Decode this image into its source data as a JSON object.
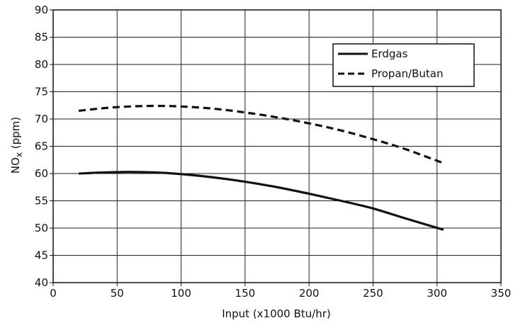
{
  "chart_data": {
    "type": "line",
    "title": "",
    "xlabel": "Input (x1000 Btu/hr)",
    "ylabel": "NOx (ppm)",
    "ylabel_main": "NO",
    "ylabel_sub": "x",
    "ylabel_rest": " (ppm)",
    "xlim": [
      0,
      350
    ],
    "ylim": [
      40,
      90
    ],
    "xticks": [
      0,
      50,
      100,
      150,
      200,
      250,
      300,
      350
    ],
    "yticks": [
      40,
      45,
      50,
      55,
      60,
      65,
      70,
      75,
      80,
      85,
      90
    ],
    "grid": true,
    "legend_position": "top-right",
    "series": [
      {
        "name": "Erdgas",
        "style": "solid",
        "color": "#111111",
        "x": [
          20,
          40,
          60,
          80,
          100,
          125,
          150,
          175,
          200,
          225,
          250,
          275,
          305
        ],
        "y": [
          60.0,
          60.2,
          60.3,
          60.2,
          59.9,
          59.3,
          58.5,
          57.5,
          56.3,
          55.0,
          53.6,
          51.8,
          49.7
        ]
      },
      {
        "name": "Propan/Butan",
        "style": "dashed",
        "color": "#111111",
        "x": [
          20,
          40,
          60,
          80,
          100,
          125,
          150,
          175,
          200,
          225,
          250,
          275,
          305
        ],
        "y": [
          71.5,
          72.0,
          72.3,
          72.4,
          72.3,
          71.9,
          71.2,
          70.3,
          69.2,
          67.9,
          66.3,
          64.5,
          61.9
        ]
      }
    ]
  }
}
